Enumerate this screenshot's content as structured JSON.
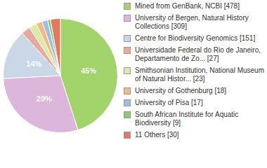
{
  "chart_data": {
    "type": "pie",
    "categories": [
      "Mined from GenBank, NCBI [478]",
      "University of Bergen, Natural History Collections [309]",
      "Centre for Biodiversity Genomics [151]",
      "Universidade Federal do Rio de Janeiro, Departamento de Zo... [27]",
      "Smithsonian Institution, National Museum of Natural Histor... [23]",
      "University of Gothenburg [18]",
      "University of Pisa [17]",
      "South African Institute for Aquatic Biodiversity [9]",
      "11 Others [30]"
    ],
    "values": [
      45.0,
      29.1,
      14.2,
      2.5,
      2.2,
      1.7,
      1.6,
      0.8,
      2.8
    ],
    "value_labels": [
      "45%",
      "29%",
      "14%",
      null,
      null,
      null,
      null,
      null,
      null
    ],
    "data_labels": true,
    "colors": [
      "#a3d36b",
      "#dcb6db",
      "#c9d7e6",
      "#e8a9a1",
      "#dfe9a6",
      "#f1bb80",
      "#9fbde2",
      "#95c675",
      "#e27a62"
    ],
    "legend": "right"
  }
}
